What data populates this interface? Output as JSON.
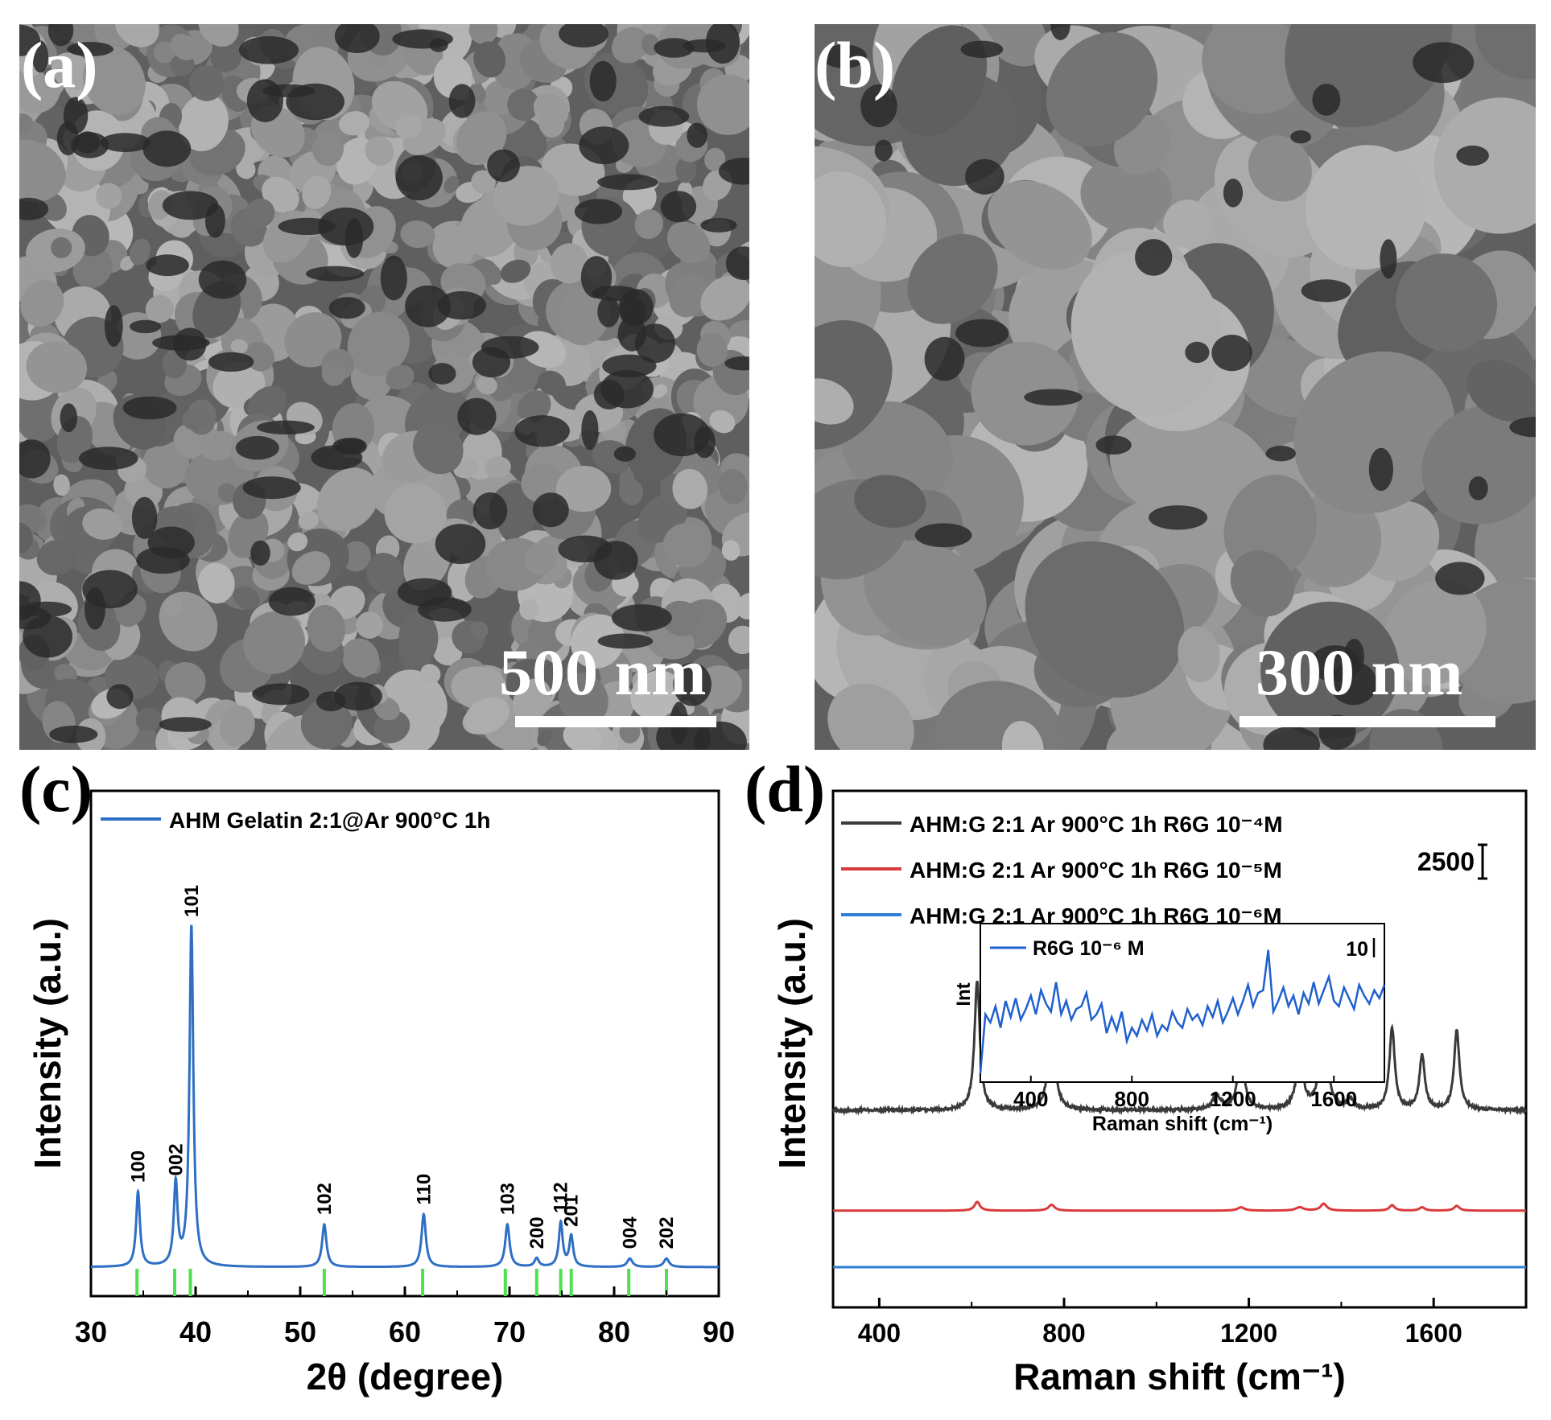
{
  "panels": {
    "a": {
      "label": "(a)",
      "scale_text": "500 nm"
    },
    "b": {
      "label": "(b)",
      "scale_text": "300 nm"
    },
    "c": {
      "label": "(c)"
    },
    "d": {
      "label": "(d)"
    }
  },
  "chart_data": [
    {
      "type": "line",
      "panel": "c",
      "xlabel": "2θ (degree)",
      "ylabel": "Intensity (a.u.)",
      "xlim": [
        30,
        90
      ],
      "xticks": [
        30,
        40,
        50,
        60,
        70,
        80,
        90
      ],
      "legend_position": "top-left",
      "series": [
        {
          "name": "AHM Gelatin 2:1@Ar 900°C 1h",
          "color": "#2e6fc4",
          "baseline": 0,
          "peaks": [
            {
              "x": 34.5,
              "y": 22,
              "w": 0.22
            },
            {
              "x": 38.1,
              "y": 24,
              "w": 0.22
            },
            {
              "x": 39.6,
              "y": 100,
              "w": 0.22
            },
            {
              "x": 52.3,
              "y": 12.5,
              "w": 0.25
            },
            {
              "x": 61.8,
              "y": 15.5,
              "w": 0.25
            },
            {
              "x": 69.8,
              "y": 12.5,
              "w": 0.25
            },
            {
              "x": 72.6,
              "y": 2.5,
              "w": 0.25
            },
            {
              "x": 74.9,
              "y": 13,
              "w": 0.22
            },
            {
              "x": 75.9,
              "y": 9,
              "w": 0.22
            },
            {
              "x": 81.5,
              "y": 2.5,
              "w": 0.3
            },
            {
              "x": 85.0,
              "y": 2.5,
              "w": 0.3
            }
          ]
        }
      ],
      "reference_lines": {
        "color": "#4ee04e",
        "x": [
          34.4,
          38.0,
          39.5,
          52.3,
          61.7,
          69.6,
          72.6,
          74.9,
          75.9,
          81.4,
          85.0
        ]
      },
      "annotations": [
        {
          "text": "100",
          "x": 34.5,
          "y": 22
        },
        {
          "text": "002",
          "x": 38.1,
          "y": 24
        },
        {
          "text": "101",
          "x": 39.6,
          "y": 100
        },
        {
          "text": "102",
          "x": 52.3,
          "y": 12.5
        },
        {
          "text": "110",
          "x": 61.8,
          "y": 15.5
        },
        {
          "text": "103",
          "x": 69.8,
          "y": 12.5
        },
        {
          "text": "200",
          "x": 72.6,
          "y": 2.5
        },
        {
          "text": "112",
          "x": 74.9,
          "y": 13
        },
        {
          "text": "201",
          "x": 75.9,
          "y": 9
        },
        {
          "text": "004",
          "x": 81.5,
          "y": 2.5
        },
        {
          "text": "202",
          "x": 85.0,
          "y": 2.5
        }
      ]
    },
    {
      "type": "line",
      "panel": "d",
      "xlabel": "Raman shift (cm⁻¹)",
      "ylabel": "Intensity (a.u.)",
      "xlim": [
        300,
        1800
      ],
      "xticks": [
        400,
        800,
        1200,
        1600
      ],
      "legend_position": "top-left",
      "scale_bar_label": "2500",
      "series": [
        {
          "name": "AHM:G 2:1  Ar 900°C 1h R6G 10⁻⁴M",
          "color": "#3a3a3a",
          "offset": 7500,
          "peaks": [
            {
              "x": 612,
              "y": 6200,
              "w": 7
            },
            {
              "x": 773,
              "y": 4600,
              "w": 8
            },
            {
              "x": 1130,
              "y": 700,
              "w": 10
            },
            {
              "x": 1183,
              "y": 2600,
              "w": 9
            },
            {
              "x": 1310,
              "y": 2200,
              "w": 10
            },
            {
              "x": 1362,
              "y": 5400,
              "w": 8
            },
            {
              "x": 1420,
              "y": 500,
              "w": 8
            },
            {
              "x": 1510,
              "y": 3900,
              "w": 7
            },
            {
              "x": 1575,
              "y": 2600,
              "w": 7
            },
            {
              "x": 1650,
              "y": 3800,
              "w": 7
            }
          ]
        },
        {
          "name": "AHM:G 2:1  Ar 900°C 1h R6G 10⁻⁵M",
          "color": "#d93a3a",
          "offset": 2700,
          "peaks": [
            {
              "x": 612,
              "y": 420,
              "w": 7
            },
            {
              "x": 773,
              "y": 280,
              "w": 8
            },
            {
              "x": 1183,
              "y": 160,
              "w": 9
            },
            {
              "x": 1310,
              "y": 160,
              "w": 10
            },
            {
              "x": 1362,
              "y": 330,
              "w": 8
            },
            {
              "x": 1510,
              "y": 260,
              "w": 7
            },
            {
              "x": 1575,
              "y": 160,
              "w": 7
            },
            {
              "x": 1650,
              "y": 230,
              "w": 7
            }
          ]
        },
        {
          "name": "AHM:G 2:1  Ar 900°C 1h R6G 10⁻⁶M",
          "color": "#2e7fd6",
          "offset": 0,
          "peaks": []
        }
      ],
      "inset": {
        "type": "line",
        "legend": "R6G 10⁻⁶ M",
        "xlabel": "Raman shift (cm⁻¹)",
        "ylabel": "Int",
        "scale_bar_label": "10",
        "xlim": [
          200,
          1800
        ],
        "xticks": [
          400,
          800,
          1200,
          1600
        ],
        "color": "#1f5fcf",
        "x": [
          200,
          220,
          240,
          260,
          280,
          300,
          320,
          340,
          360,
          380,
          400,
          420,
          440,
          460,
          480,
          500,
          520,
          540,
          560,
          580,
          600,
          620,
          640,
          660,
          680,
          700,
          720,
          740,
          760,
          780,
          800,
          820,
          840,
          860,
          880,
          900,
          920,
          940,
          960,
          980,
          1000,
          1020,
          1040,
          1060,
          1080,
          1100,
          1120,
          1140,
          1160,
          1180,
          1200,
          1220,
          1240,
          1260,
          1280,
          1300,
          1320,
          1340,
          1360,
          1380,
          1400,
          1420,
          1440,
          1460,
          1480,
          1500,
          1520,
          1540,
          1560,
          1580,
          1600,
          1620,
          1640,
          1660,
          1680,
          1700,
          1720,
          1740,
          1760,
          1780,
          1800
        ],
        "y": [
          2,
          24,
          21,
          27,
          19,
          29,
          23,
          30,
          22,
          26,
          31,
          24,
          33,
          28,
          25,
          36,
          24,
          29,
          22,
          26,
          27,
          32,
          22,
          24,
          28,
          17,
          23,
          18,
          25,
          14,
          19,
          16,
          22,
          18,
          24,
          16,
          20,
          18,
          25,
          21,
          19,
          26,
          22,
          24,
          20,
          27,
          23,
          29,
          21,
          25,
          30,
          24,
          29,
          35,
          27,
          32,
          33,
          48,
          25,
          29,
          34,
          27,
          31,
          24,
          32,
          28,
          36,
          28,
          33,
          38,
          29,
          27,
          34,
          30,
          26,
          35,
          31,
          28,
          33,
          30,
          35
        ]
      }
    }
  ]
}
